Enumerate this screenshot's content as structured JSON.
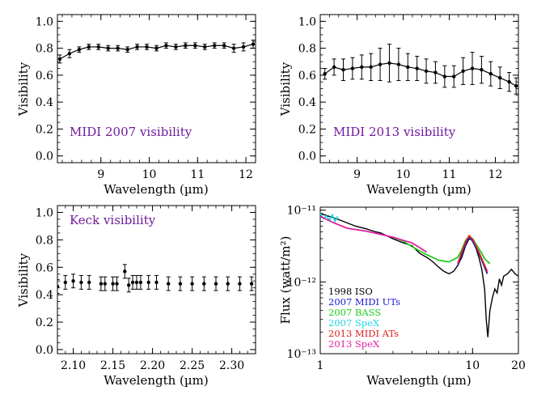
{
  "chart_data": [
    {
      "id": "p1",
      "type": "scatter",
      "annotation": "MIDI 2007 visibility",
      "xlabel": "Wavelength (µm)",
      "ylabel": "Visibility",
      "xlim": [
        8.1,
        12.2
      ],
      "ylim": [
        -0.05,
        1.05
      ],
      "xticks": [
        9,
        10,
        11,
        12
      ],
      "yticks": [
        0.0,
        0.2,
        0.4,
        0.6,
        0.8,
        1.0
      ],
      "ytick_labels": [
        "0.0",
        "0.2",
        "0.4",
        "0.6",
        "0.8",
        "1.0"
      ],
      "color": "#000000",
      "series": [
        {
          "x": [
            8.15,
            8.35,
            8.55,
            8.75,
            8.95,
            9.15,
            9.35,
            9.55,
            9.75,
            9.95,
            10.15,
            10.35,
            10.55,
            10.75,
            10.95,
            11.15,
            11.35,
            11.55,
            11.75,
            11.95,
            12.15
          ],
          "y": [
            0.72,
            0.76,
            0.79,
            0.81,
            0.81,
            0.8,
            0.8,
            0.79,
            0.81,
            0.81,
            0.8,
            0.82,
            0.81,
            0.82,
            0.82,
            0.81,
            0.82,
            0.82,
            0.8,
            0.81,
            0.83
          ],
          "err": [
            0.03,
            0.03,
            0.02,
            0.02,
            0.02,
            0.02,
            0.02,
            0.02,
            0.02,
            0.02,
            0.02,
            0.02,
            0.02,
            0.02,
            0.02,
            0.02,
            0.02,
            0.02,
            0.03,
            0.03,
            0.03
          ]
        }
      ]
    },
    {
      "id": "p2",
      "type": "scatter",
      "annotation": "MIDI 2013 visibility",
      "xlabel": "Wavelength (µm)",
      "ylabel": "Visibility",
      "xlim": [
        8.2,
        12.5
      ],
      "ylim": [
        -0.05,
        1.05
      ],
      "xticks": [
        9,
        10,
        11,
        12
      ],
      "yticks": [
        0.0,
        0.2,
        0.4,
        0.6,
        0.8,
        1.0
      ],
      "ytick_labels": [
        "0.0",
        "0.2",
        "0.4",
        "0.6",
        "0.8",
        "1.0"
      ],
      "color": "#000000",
      "series": [
        {
          "x": [
            8.3,
            8.5,
            8.7,
            8.9,
            9.1,
            9.3,
            9.5,
            9.7,
            9.9,
            10.1,
            10.3,
            10.5,
            10.7,
            10.9,
            11.1,
            11.3,
            11.5,
            11.7,
            11.9,
            12.1,
            12.3,
            12.45
          ],
          "y": [
            0.61,
            0.66,
            0.64,
            0.65,
            0.66,
            0.66,
            0.68,
            0.69,
            0.68,
            0.66,
            0.65,
            0.63,
            0.62,
            0.59,
            0.59,
            0.63,
            0.65,
            0.64,
            0.61,
            0.58,
            0.55,
            0.52
          ],
          "err": [
            0.04,
            0.06,
            0.08,
            0.08,
            0.09,
            0.1,
            0.12,
            0.14,
            0.12,
            0.1,
            0.09,
            0.09,
            0.08,
            0.08,
            0.08,
            0.1,
            0.12,
            0.1,
            0.09,
            0.08,
            0.07,
            0.06
          ]
        }
      ]
    },
    {
      "id": "p3",
      "type": "scatter",
      "annotation": "Keck visibility",
      "xlabel": "Wavelength (µm)",
      "ylabel": "Visibility",
      "xlim": [
        2.08,
        2.33
      ],
      "ylim": [
        -0.03,
        1.05
      ],
      "xticks": [
        2.1,
        2.15,
        2.2,
        2.25,
        2.3
      ],
      "xtick_labels": [
        "2.10",
        "2.15",
        "2.20",
        "2.25",
        "2.30"
      ],
      "yticks": [
        0.0,
        0.2,
        0.4,
        0.6,
        0.8,
        1.0
      ],
      "ytick_labels": [
        "0.0",
        "0.2",
        "0.4",
        "0.6",
        "0.8",
        "1.0"
      ],
      "color": "#000000",
      "series": [
        {
          "x": [
            2.08,
            2.09,
            2.1,
            2.11,
            2.12,
            2.135,
            2.14,
            2.15,
            2.155,
            2.165,
            2.17,
            2.175,
            2.18,
            2.185,
            2.195,
            2.205,
            2.22,
            2.235,
            2.25,
            2.265,
            2.28,
            2.295,
            2.31,
            2.325
          ],
          "y": [
            0.46,
            0.49,
            0.5,
            0.49,
            0.49,
            0.48,
            0.48,
            0.48,
            0.48,
            0.57,
            0.47,
            0.49,
            0.49,
            0.49,
            0.49,
            0.49,
            0.48,
            0.48,
            0.48,
            0.48,
            0.48,
            0.48,
            0.48,
            0.48
          ],
          "err": [
            0.05,
            0.05,
            0.05,
            0.05,
            0.05,
            0.05,
            0.05,
            0.05,
            0.05,
            0.05,
            0.05,
            0.05,
            0.05,
            0.05,
            0.05,
            0.05,
            0.05,
            0.05,
            0.05,
            0.05,
            0.05,
            0.05,
            0.05,
            0.05
          ]
        }
      ]
    },
    {
      "id": "p4",
      "type": "line",
      "xlabel": "Wavelength (µm)",
      "ylabel": "Flux (watt/m²)",
      "xscale": "log",
      "yscale": "log",
      "xlim": [
        1,
        20
      ],
      "ylim": [
        1e-13,
        1.1e-11
      ],
      "xticks": [
        1,
        10,
        20
      ],
      "xtick_labels": [
        "1",
        "10",
        "20"
      ],
      "yticks": [
        1e-13,
        1e-12,
        1e-11
      ],
      "ytick_labels": [
        "10⁻¹³",
        "10⁻¹²",
        "10⁻¹¹"
      ],
      "legend_position": "lower-left",
      "series": [
        {
          "name": "1998 ISO",
          "color": "#000000",
          "x": [
            1.0,
            1.3,
            1.7,
            2.0,
            2.3,
            2.5,
            3.0,
            3.5,
            4.0,
            4.5,
            5.0,
            5.5,
            6.0,
            6.5,
            7.0,
            7.5,
            8.0,
            8.5,
            9.0,
            9.5,
            10.0,
            10.5,
            11.0,
            11.5,
            12.0,
            12.3,
            12.6,
            13.0,
            13.5,
            14.0,
            14.5,
            15.0,
            15.5,
            16.0,
            17.0,
            18.0,
            19.0,
            20.0
          ],
          "y": [
            9e-12,
            7.5e-12,
            6e-12,
            5.5e-12,
            5e-12,
            4.8e-12,
            4e-12,
            3.5e-12,
            3.2e-12,
            2.5e-12,
            2.2e-12,
            1.9e-12,
            1.6e-12,
            1.4e-12,
            1.3e-12,
            1.4e-12,
            1.7e-12,
            2.2e-12,
            3.2e-12,
            4e-12,
            3.8e-12,
            3e-12,
            2.2e-12,
            1.5e-12,
            8e-13,
            3e-13,
            1.7e-13,
            4e-13,
            6e-13,
            8e-13,
            7e-13,
            1.1e-12,
            9e-13,
            1.2e-12,
            1.3e-12,
            1.5e-12,
            1.3e-12,
            1.2e-12
          ]
        },
        {
          "name": "2007 MIDI UTs",
          "color": "#1a1ad6",
          "x": [
            8.0,
            8.5,
            9.0,
            9.5,
            10.0,
            10.5,
            11.0,
            11.5,
            12.0,
            12.5
          ],
          "y": [
            1.7e-12,
            2.4e-12,
            3.4e-12,
            4.2e-12,
            3.7e-12,
            3e-12,
            2.5e-12,
            2e-12,
            1.6e-12,
            1.3e-12
          ]
        },
        {
          "name": "2007 BASS",
          "color": "#1fcc1f",
          "x": [
            3.0,
            3.5,
            4.0,
            5.0,
            6.0,
            7.0,
            8.0,
            8.5,
            9.0,
            9.5,
            10.0,
            10.5,
            11.0,
            11.5,
            12.0,
            13.0
          ],
          "y": [
            4.2e-12,
            3.7e-12,
            3.1e-12,
            2.4e-12,
            2e-12,
            1.9e-12,
            2.2e-12,
            2.8e-12,
            3.8e-12,
            4.3e-12,
            4e-12,
            3.4e-12,
            2.9e-12,
            2.5e-12,
            2.1e-12,
            1.8e-12
          ]
        },
        {
          "name": "2007 SpeX",
          "color": "#22d6e6",
          "x": [
            1.0,
            1.05,
            1.1,
            1.15,
            1.2,
            1.25,
            1.3
          ],
          "y": [
            9e-12,
            7.6e-12,
            8.3e-12,
            7.2e-12,
            8.6e-12,
            7e-12,
            8.2e-12
          ]
        },
        {
          "name": "2013 MIDI ATs",
          "color": "#e01c1c",
          "x": [
            8.0,
            8.5,
            9.0,
            9.5,
            10.0,
            10.5,
            11.0,
            11.5,
            12.0,
            12.5
          ],
          "y": [
            1.8e-12,
            2.6e-12,
            3.6e-12,
            4.4e-12,
            3.9e-12,
            3.2e-12,
            2.6e-12,
            2.1e-12,
            1.7e-12,
            1.4e-12
          ]
        },
        {
          "name": "2013 SpeX",
          "color": "#e0209f",
          "x": [
            1.0,
            1.2,
            1.5,
            2.0,
            2.5,
            3.0,
            3.5,
            4.0,
            4.5,
            5.0
          ],
          "y": [
            8.2e-12,
            6.8e-12,
            5.6e-12,
            5.1e-12,
            4.6e-12,
            4.2e-12,
            3.8e-12,
            3.5e-12,
            3e-12,
            2.6e-12
          ]
        }
      ]
    }
  ]
}
